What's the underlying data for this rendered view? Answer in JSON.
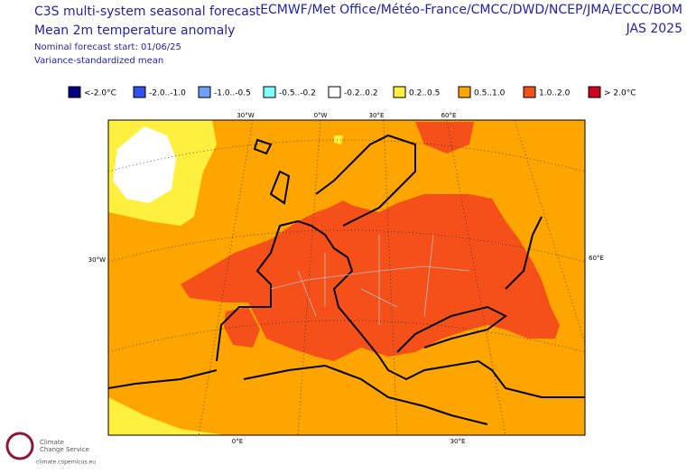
{
  "header": {
    "title": "C3S multi-system seasonal forecast",
    "subtitle": "Mean 2m temperature anomaly",
    "start": "Nominal forecast start: 01/06/25",
    "method": "Variance-standardized mean",
    "centres": "ECMWF/Met Office/Météo-France/CMCC/DWD/NCEP/JMA/ECCC/BOM",
    "period": "JAS 2025"
  },
  "legend": [
    {
      "label": "<-2.0°C",
      "color": "#000080"
    },
    {
      "label": "-2.0..-1.0",
      "color": "#3050f0"
    },
    {
      "label": "-1.0..-0.5",
      "color": "#70a0ff"
    },
    {
      "label": "-0.5..-0.2",
      "color": "#80ffff"
    },
    {
      "label": "-0.2..0.2",
      "color": "#ffffff"
    },
    {
      "label": "0.2..0.5",
      "color": "#fff040"
    },
    {
      "label": "0.5..1.0",
      "color": "#ffa500"
    },
    {
      "label": "1.0..2.0",
      "color": "#f5501a"
    },
    {
      "label": "> 2.0°C",
      "color": "#d00020"
    }
  ],
  "graticule": {
    "top": [
      "30°W",
      "0°W",
      "30°E",
      "60°E"
    ],
    "left": "30°W",
    "right": "60°E",
    "bottom": [
      "0°E",
      "30°E"
    ]
  },
  "logo": {
    "line1": "Climate",
    "line2": "Change Service",
    "url": "climate.copernicus.eu"
  }
}
